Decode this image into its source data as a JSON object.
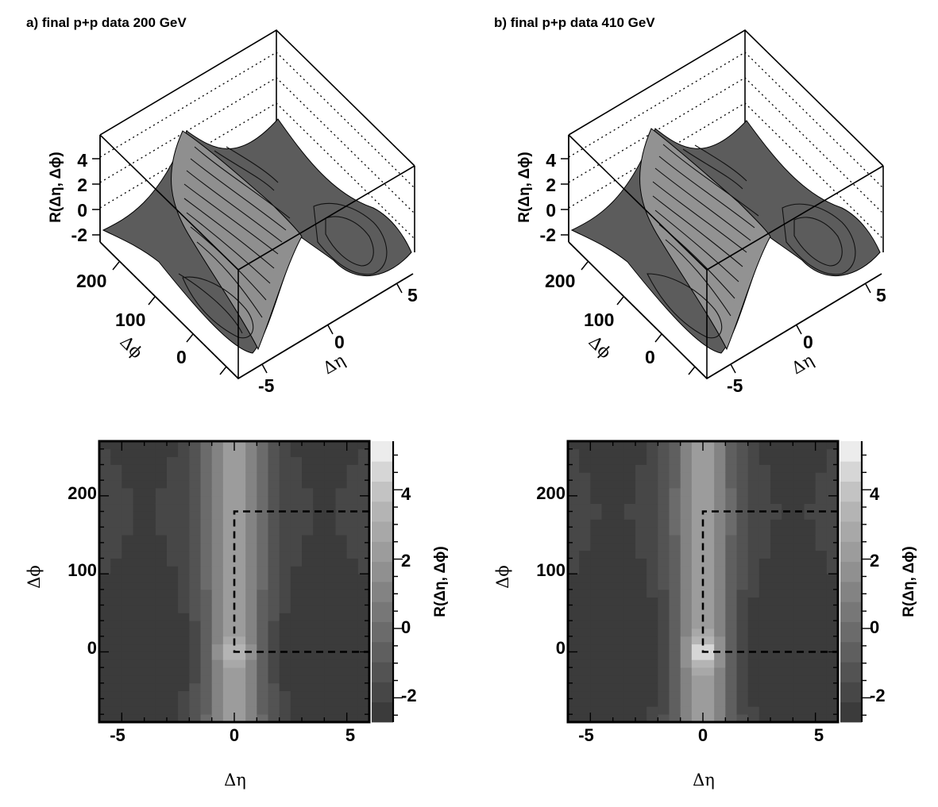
{
  "panels": [
    {
      "title": "a) final p+p data 200 GeV",
      "surface_3d": {
        "zlabel": "R(Δη, Δϕ)",
        "zticks": [
          "4",
          "2",
          "0",
          "-2"
        ],
        "phi_label": "Δϕ",
        "phi_ticks": [
          "200",
          "100",
          "0"
        ],
        "eta_label": "Δη",
        "eta_ticks": [
          "5",
          "0",
          "-5"
        ]
      },
      "map_2d": {
        "xlabel": "Δη",
        "ylabel": "Δϕ",
        "xticks": [
          "-5",
          "0",
          "5"
        ],
        "yticks": [
          "200",
          "100",
          "0"
        ],
        "colorbar_label": "R(Δη, Δϕ)",
        "colorbar_ticks": [
          "4",
          "2",
          "0",
          "-2"
        ]
      }
    },
    {
      "title": "b) final p+p data 410 GeV",
      "surface_3d": {
        "zlabel": "R(Δη, Δϕ)",
        "zticks": [
          "4",
          "2",
          "0",
          "-2"
        ],
        "phi_label": "Δϕ",
        "phi_ticks": [
          "200",
          "100",
          "0"
        ],
        "eta_label": "Δη",
        "eta_ticks": [
          "5",
          "0",
          "-5"
        ]
      },
      "map_2d": {
        "xlabel": "Δη",
        "ylabel": "Δϕ",
        "xticks": [
          "-5",
          "0",
          "5"
        ],
        "yticks": [
          "200",
          "100",
          "0"
        ],
        "colorbar_label": "R(Δη, Δϕ)",
        "colorbar_ticks": [
          "4",
          "2",
          "0",
          "-2"
        ]
      }
    }
  ],
  "chart_data": [
    {
      "type": "heatmap",
      "title": "a) final p+p data 200 GeV",
      "xlabel": "Δη",
      "ylabel": "Δϕ",
      "zlabel": "R(Δη, Δϕ)",
      "xlim": [
        -6,
        6
      ],
      "ylim": [
        -90,
        270
      ],
      "zlim": [
        -2.7,
        5.4
      ],
      "model": {
        "ridge_amp": 3.7,
        "ridge_width": 0.85,
        "peak_amp": 1.4,
        "away_amp": 1.6,
        "offset": -1.4
      },
      "dashed_region": {
        "eta": [
          0,
          6
        ],
        "phi": [
          0,
          180
        ]
      },
      "grid": {
        "x_bins": 24,
        "y_bins": 36
      },
      "colors": [
        "#3b3b3b",
        "#474747",
        "#535353",
        "#5f5f5f",
        "#6b6b6b",
        "#777777",
        "#838383",
        "#909090",
        "#9c9c9c",
        "#a8a8a8",
        "#b4b4b4",
        "#c3c3c3",
        "#d6d6d6",
        "#ececec"
      ]
    },
    {
      "type": "heatmap",
      "title": "b) final p+p data 410 GeV",
      "xlabel": "Δη",
      "ylabel": "Δϕ",
      "zlabel": "R(Δη, Δϕ)",
      "xlim": [
        -6,
        6
      ],
      "ylim": [
        -90,
        270
      ],
      "zlim": [
        -2.7,
        5.4
      ],
      "model": {
        "ridge_amp": 3.9,
        "ridge_width": 0.8,
        "peak_amp": 3.0,
        "away_amp": 1.6,
        "offset": -1.45
      },
      "dashed_region": {
        "eta": [
          0,
          6
        ],
        "phi": [
          0,
          180
        ]
      },
      "grid": {
        "x_bins": 24,
        "y_bins": 36
      },
      "colors": [
        "#3b3b3b",
        "#474747",
        "#535353",
        "#5f5f5f",
        "#6b6b6b",
        "#777777",
        "#838383",
        "#909090",
        "#9c9c9c",
        "#a8a8a8",
        "#b4b4b4",
        "#c3c3c3",
        "#d6d6d6",
        "#ececec"
      ]
    }
  ]
}
